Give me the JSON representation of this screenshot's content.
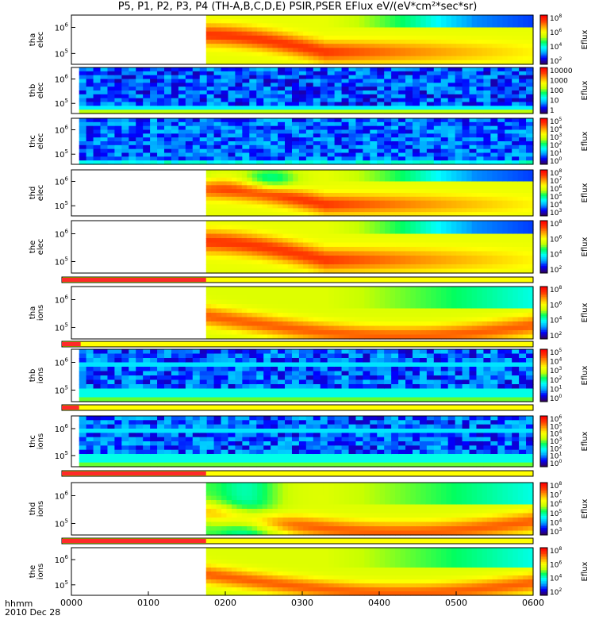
{
  "title": "P5, P1, P2, P3, P4 (TH-A,B,C,D,E) PSIR,PSER EFlux eV/(eV*cm²*sec*sr)",
  "time_axis": {
    "label_row1": "hhmm",
    "label_row2": "2010 Dec 28",
    "ticks": [
      "0000",
      "0100",
      "0200",
      "0300",
      "0400",
      "0500",
      "0600"
    ],
    "range_hours": [
      0,
      6
    ]
  },
  "colors": {
    "colormap": [
      "#2d0069",
      "#0000ff",
      "#00a6ff",
      "#00ffff",
      "#00ff60",
      "#c8ff00",
      "#ffff00",
      "#ffa000",
      "#ff3c00",
      "#ff0000"
    ],
    "bar_red": "#ff2a2a",
    "bar_yellow": "#ffff00"
  },
  "chart_data": {
    "type": "heatmap",
    "panels": [
      {
        "id": "tha-elec",
        "ylabel": "tha\nelec",
        "y_ticks": [
          {
            "base": "10",
            "exp": "6"
          },
          {
            "base": "10",
            "exp": "5"
          }
        ],
        "cbar_label": "Eflux",
        "cbar_ticks": [
          {
            "base": "10",
            "exp": "8"
          },
          {
            "base": "10",
            "exp": "6"
          },
          {
            "base": "10",
            "exp": "4"
          },
          {
            "base": "10",
            "exp": "2"
          }
        ],
        "data_start_hour": 1.75,
        "pattern": "dome"
      },
      {
        "id": "thb-elec",
        "ylabel": "thb\nelec",
        "y_ticks": [
          {
            "base": "10",
            "exp": "6"
          },
          {
            "base": "10",
            "exp": "5"
          }
        ],
        "cbar_label": "Eflux",
        "cbar_ticks": [
          {
            "base": "10000",
            "exp": ""
          },
          {
            "base": "1000",
            "exp": ""
          },
          {
            "base": "100",
            "exp": ""
          },
          {
            "base": "10",
            "exp": ""
          },
          {
            "base": "1",
            "exp": ""
          }
        ],
        "data_start_hour": 0.1,
        "pattern": "noise-band"
      },
      {
        "id": "thc-elec",
        "ylabel": "thc\nelec",
        "y_ticks": [
          {
            "base": "10",
            "exp": "6"
          },
          {
            "base": "10",
            "exp": "5"
          }
        ],
        "cbar_label": "Eflux",
        "cbar_ticks": [
          {
            "base": "10",
            "exp": "5"
          },
          {
            "base": "10",
            "exp": "4"
          },
          {
            "base": "10",
            "exp": "3"
          },
          {
            "base": "10",
            "exp": "2"
          },
          {
            "base": "10",
            "exp": "1"
          },
          {
            "base": "10",
            "exp": "0"
          }
        ],
        "data_start_hour": 0.1,
        "pattern": "noise"
      },
      {
        "id": "thd-elec",
        "ylabel": "thd\nelec",
        "y_ticks": [
          {
            "base": "10",
            "exp": "6"
          },
          {
            "base": "10",
            "exp": "5"
          }
        ],
        "cbar_label": "Eflux",
        "cbar_ticks": [
          {
            "base": "10",
            "exp": "8"
          },
          {
            "base": "10",
            "exp": "7"
          },
          {
            "base": "10",
            "exp": "6"
          },
          {
            "base": "10",
            "exp": "5"
          },
          {
            "base": "10",
            "exp": "4"
          },
          {
            "base": "10",
            "exp": "3"
          }
        ],
        "data_start_hour": 1.75,
        "pattern": "dome-green"
      },
      {
        "id": "the-elec",
        "ylabel": "the\nelec",
        "y_ticks": [
          {
            "base": "10",
            "exp": "6"
          },
          {
            "base": "10",
            "exp": "5"
          }
        ],
        "cbar_label": "Eflux",
        "cbar_ticks": [
          {
            "base": "10",
            "exp": "8"
          },
          {
            "base": "10",
            "exp": "6"
          },
          {
            "base": "10",
            "exp": "4"
          },
          {
            "base": "10",
            "exp": "2"
          }
        ],
        "data_start_hour": 1.75,
        "pattern": "dome"
      },
      {
        "id": "tha-ions",
        "ylabel": "tha\nions",
        "y_ticks": [
          {
            "base": "10",
            "exp": "6"
          },
          {
            "base": "10",
            "exp": "5"
          }
        ],
        "cbar_label": "Eflux",
        "cbar_ticks": [
          {
            "base": "10",
            "exp": "8"
          },
          {
            "base": "10",
            "exp": "6"
          },
          {
            "base": "10",
            "exp": "4"
          },
          {
            "base": "10",
            "exp": "2"
          }
        ],
        "data_start_hour": 1.75,
        "pattern": "ions",
        "bar_red_until_hour": 1.75
      },
      {
        "id": "thb-ions",
        "ylabel": "thb\nions",
        "y_ticks": [
          {
            "base": "10",
            "exp": "6"
          },
          {
            "base": "10",
            "exp": "5"
          }
        ],
        "cbar_label": "Eflux",
        "cbar_ticks": [
          {
            "base": "10",
            "exp": "5"
          },
          {
            "base": "10",
            "exp": "4"
          },
          {
            "base": "10",
            "exp": "3"
          },
          {
            "base": "10",
            "exp": "2"
          },
          {
            "base": "10",
            "exp": "1"
          },
          {
            "base": "10",
            "exp": "0"
          }
        ],
        "data_start_hour": 0.1,
        "pattern": "noise-ion",
        "bar_red_until_hour": 0.12
      },
      {
        "id": "thc-ions",
        "ylabel": "thc\nions",
        "y_ticks": [
          {
            "base": "10",
            "exp": "6"
          },
          {
            "base": "10",
            "exp": "5"
          }
        ],
        "cbar_label": "Eflux",
        "cbar_ticks": [
          {
            "base": "10",
            "exp": "6"
          },
          {
            "base": "10",
            "exp": "5"
          },
          {
            "base": "10",
            "exp": "4"
          },
          {
            "base": "10",
            "exp": "3"
          },
          {
            "base": "10",
            "exp": "2"
          },
          {
            "base": "10",
            "exp": "1"
          },
          {
            "base": "10",
            "exp": "0"
          }
        ],
        "data_start_hour": 0.1,
        "pattern": "noise-ion",
        "bar_red_until_hour": 0.1
      },
      {
        "id": "thd-ions",
        "ylabel": "thd\nions",
        "y_ticks": [
          {
            "base": "10",
            "exp": "6"
          },
          {
            "base": "10",
            "exp": "5"
          }
        ],
        "cbar_label": "Eflux",
        "cbar_ticks": [
          {
            "base": "10",
            "exp": "8"
          },
          {
            "base": "10",
            "exp": "7"
          },
          {
            "base": "10",
            "exp": "6"
          },
          {
            "base": "10",
            "exp": "5"
          },
          {
            "base": "10",
            "exp": "4"
          },
          {
            "base": "10",
            "exp": "3"
          }
        ],
        "data_start_hour": 1.75,
        "pattern": "ions-green",
        "bar_red_until_hour": 1.75
      },
      {
        "id": "the-ions",
        "ylabel": "the\nions",
        "y_ticks": [
          {
            "base": "10",
            "exp": "6"
          },
          {
            "base": "10",
            "exp": "5"
          }
        ],
        "cbar_label": "Eflux",
        "cbar_ticks": [
          {
            "base": "10",
            "exp": "8"
          },
          {
            "base": "10",
            "exp": "6"
          },
          {
            "base": "10",
            "exp": "4"
          },
          {
            "base": "10",
            "exp": "2"
          }
        ],
        "data_start_hour": 1.75,
        "pattern": "ions",
        "bar_red_until_hour": 1.75
      }
    ]
  }
}
